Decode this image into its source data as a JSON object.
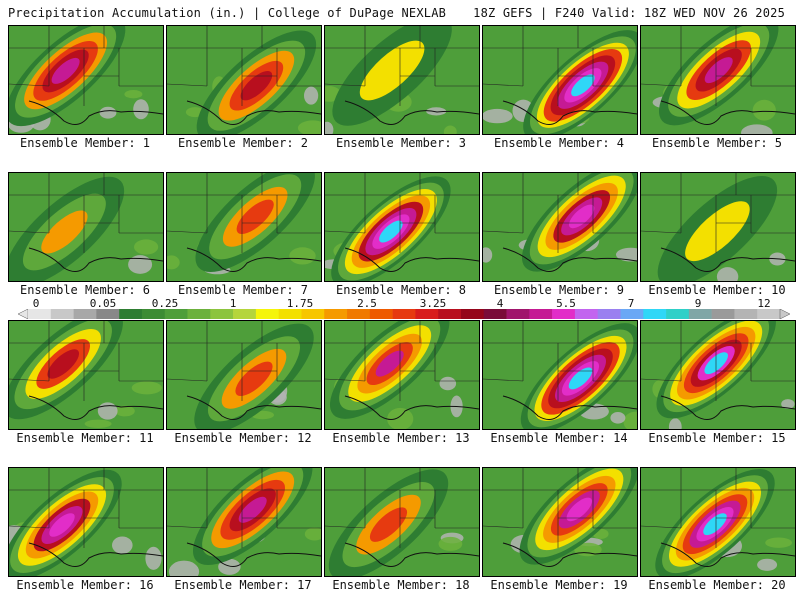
{
  "header": {
    "left": "Precipitation Accumulation (in.) | College of DuPage NEXLAB",
    "right": "18Z GEFS | F240 Valid: 18Z WED NOV 26 2025"
  },
  "colorbar": {
    "labels": [
      "0",
      "0.05",
      "0.25",
      "1",
      "1.75",
      "2.5",
      "3.25",
      "4",
      "5.5",
      "7",
      "9",
      "12"
    ],
    "colors": [
      "#e6e6e6",
      "#c8c8c8",
      "#a8a8a8",
      "#888888",
      "#2e7d32",
      "#3c8c34",
      "#4e9e3a",
      "#6cb13c",
      "#8cc43e",
      "#b5d53b",
      "#f5f50a",
      "#f3e000",
      "#f7c600",
      "#f59a00",
      "#f07a00",
      "#ee5a00",
      "#e63a10",
      "#d81c1c",
      "#b80f1e",
      "#95051a",
      "#7a0b38",
      "#a0156c",
      "#c51a94",
      "#e22dc8",
      "#c264ef",
      "#9a80f0",
      "#6aa8f5",
      "#2fd7f7",
      "#2fd0c8",
      "#7fa6a6",
      "#9a9a9a",
      "#b4b4b4",
      "#c8c8c8"
    ]
  },
  "panels": [
    {
      "label": "Ensemble Member: 1",
      "intensity": 3.2
    },
    {
      "label": "Ensemble Member: 2",
      "intensity": 2.6
    },
    {
      "label": "Ensemble Member: 3",
      "intensity": 1.2
    },
    {
      "label": "Ensemble Member: 4",
      "intensity": 4.2
    },
    {
      "label": "Ensemble Member: 5",
      "intensity": 3.0
    },
    {
      "label": "Ensemble Member: 6",
      "intensity": 1.3
    },
    {
      "label": "Ensemble Member: 7",
      "intensity": 2.2
    },
    {
      "label": "Ensemble Member: 8",
      "intensity": 4.0
    },
    {
      "label": "Ensemble Member: 9",
      "intensity": 3.4
    },
    {
      "label": "Ensemble Member: 10",
      "intensity": 1.1
    },
    {
      "label": "Ensemble Member: 11",
      "intensity": 2.4
    },
    {
      "label": "Ensemble Member: 12",
      "intensity": 2.2
    },
    {
      "label": "Ensemble Member: 13",
      "intensity": 2.8
    },
    {
      "label": "Ensemble Member: 14",
      "intensity": 4.1
    },
    {
      "label": "Ensemble Member: 15",
      "intensity": 3.8
    },
    {
      "label": "Ensemble Member: 16",
      "intensity": 3.4
    },
    {
      "label": "Ensemble Member: 17",
      "intensity": 3.2
    },
    {
      "label": "Ensemble Member: 18",
      "intensity": 2.0
    },
    {
      "label": "Ensemble Member: 19",
      "intensity": 3.3
    },
    {
      "label": "Ensemble Member: 20",
      "intensity": 3.9
    }
  ]
}
